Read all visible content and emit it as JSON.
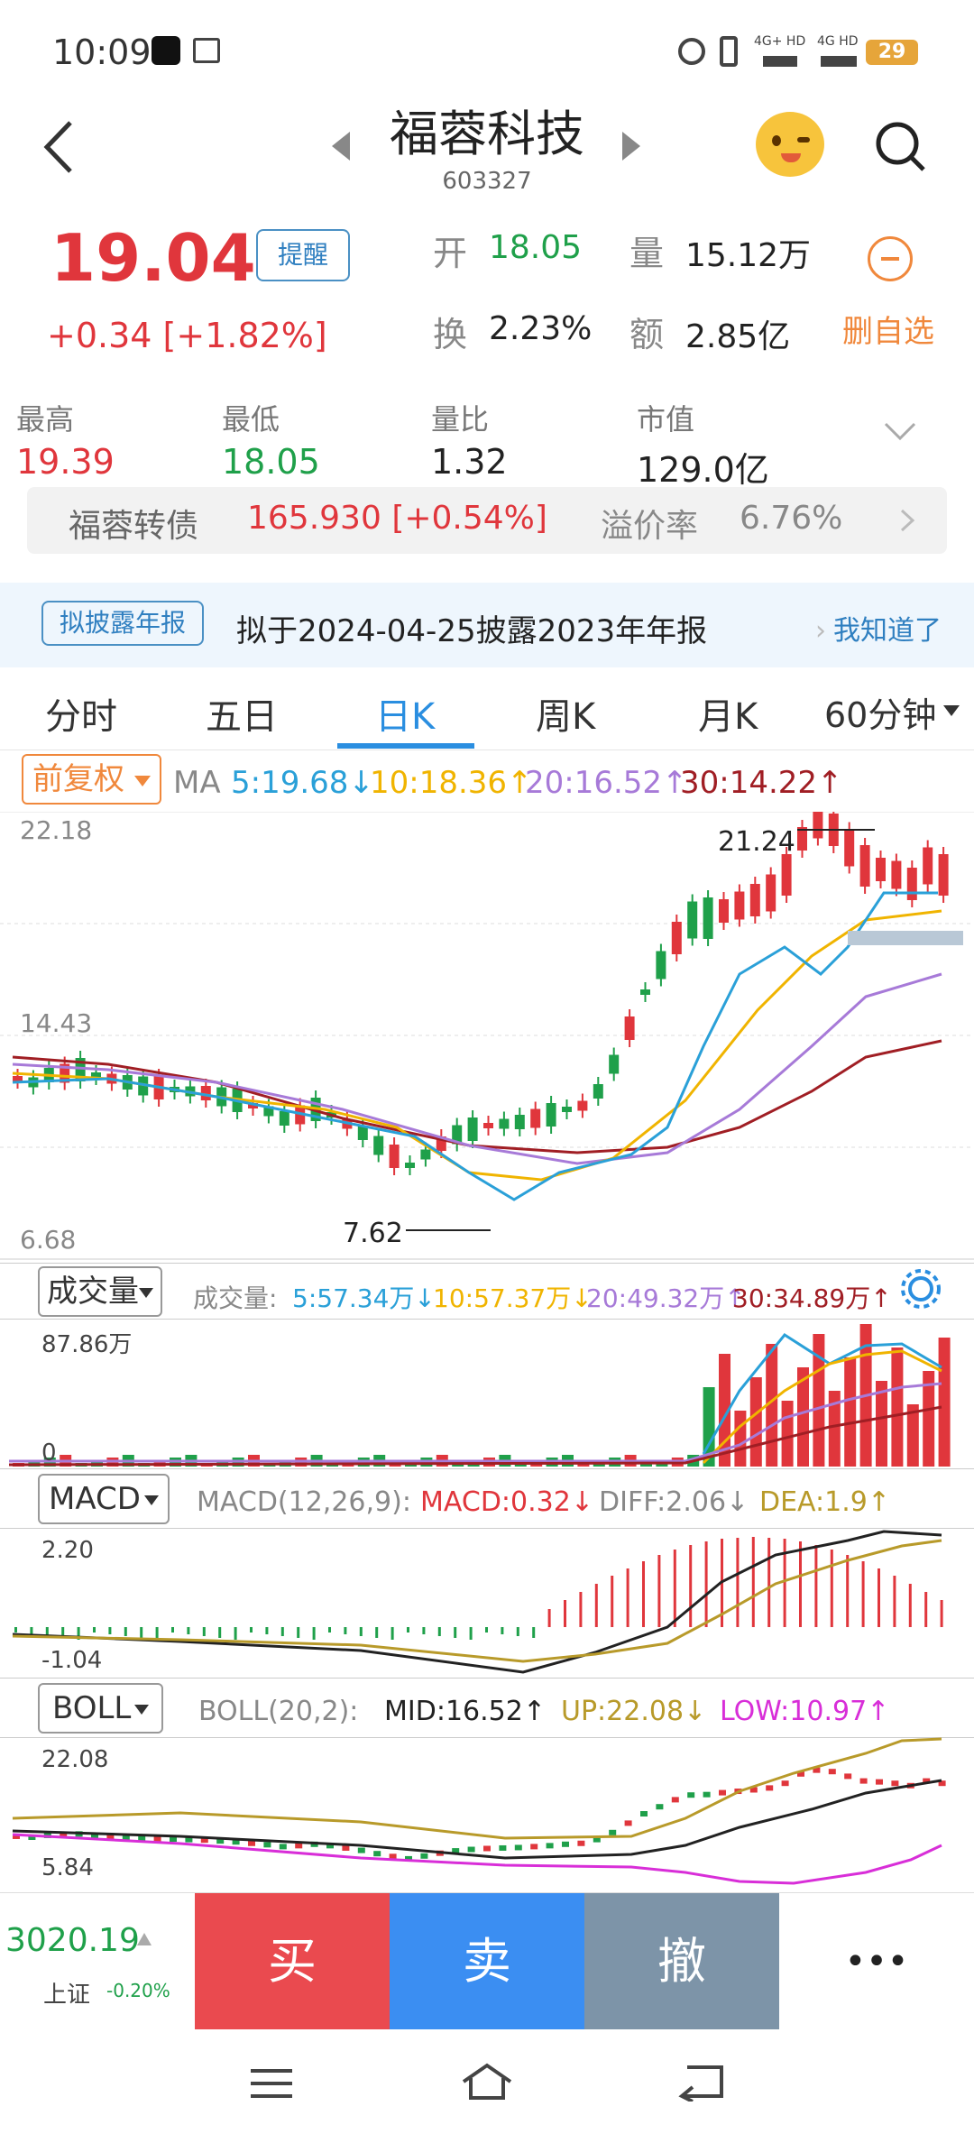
{
  "status": {
    "time": "10:09",
    "battery": "29",
    "net1": "4G+ HD",
    "net2": "4G HD"
  },
  "header": {
    "title": "福蓉科技",
    "code": "603327"
  },
  "quote": {
    "price": "19.04",
    "change": "+0.34  [+1.82%]",
    "remind_label": "提醒",
    "open_label": "开",
    "open": "18.05",
    "volume_label": "量",
    "volume": "15.12万",
    "turnover_label": "换",
    "turnover": "2.23%",
    "amount_label": "额",
    "amount": "2.85亿",
    "delete_watch": "删自选"
  },
  "stats": [
    {
      "label": "最高",
      "value": "19.39",
      "color": "red"
    },
    {
      "label": "最低",
      "value": "18.05",
      "color": "green"
    },
    {
      "label": "量比",
      "value": "1.32",
      "color": "normal"
    },
    {
      "label": "市值",
      "value": "129.0亿",
      "color": "normal"
    }
  ],
  "bond": {
    "name": "福蓉转债",
    "value": "165.930  [+0.54%]",
    "premium_label": "溢价率",
    "premium": "6.76%"
  },
  "notice": {
    "tag": "拟披露年报",
    "text": "拟于2024-04-25披露2023年年报",
    "action": "我知道了"
  },
  "tabs": [
    "分时",
    "五日",
    "日K",
    "周K",
    "月K",
    "60分钟"
  ],
  "active_tab": 2,
  "kline": {
    "adjust": "前复权",
    "ma_label": "MA",
    "ma5": "5:19.68↓",
    "ma10": "10:18.36↑",
    "ma20": "20:16.52↑",
    "ma30": "30:14.22↑",
    "y_top": "22.18",
    "y_mid": "14.43",
    "y_bottom": "6.68",
    "high_mark": "21.24",
    "low_mark": "7.62"
  },
  "volume": {
    "selector": "成交量",
    "label": "成交量:",
    "v5": "5:57.34万↓",
    "v10": "10:57.37万↓",
    "v20": "20:49.32万↑",
    "v30": "30:34.89万↑",
    "y_top": "87.86万",
    "y_bottom": "0"
  },
  "macd": {
    "selector": "MACD",
    "params": "MACD(12,26,9):",
    "macd": "MACD:0.32↓",
    "diff": "DIFF:2.06↓",
    "dea": "DEA:1.9↑",
    "y_top": "2.20",
    "y_bottom": "-1.04"
  },
  "boll": {
    "selector": "BOLL",
    "params": "BOLL(20,2):",
    "mid": "MID:16.52↑",
    "up": "UP:22.08↓",
    "low": "LOW:10.97↑",
    "y_top": "22.08",
    "y_bottom": "5.84"
  },
  "index": {
    "value": "3020.19",
    "name": "上证",
    "change": "-0.20%"
  },
  "actions": {
    "buy": "买",
    "sell": "卖",
    "cancel": "撤",
    "more": "•••"
  },
  "colors": {
    "up": "#e0363c",
    "down": "#1fa04a",
    "ma5": "#2aa0d8",
    "ma10": "#f0b400",
    "ma20": "#a77ad8",
    "ma30": "#a01e24"
  }
}
